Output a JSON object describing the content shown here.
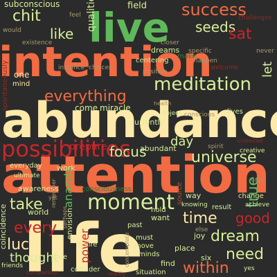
{
  "palette": {
    "background": "#2b2b2b",
    "cream": "#fde9a9",
    "orange": "#f26b43",
    "red": "#c9262a",
    "green": "#5fb85b",
    "pale-green": "#d7ef9a",
    "dim-red": "#8f2a24",
    "dim-green": "#3e7d3c",
    "dim-orange": "#a5553a",
    "dim-cream": "#a89a6f",
    "dim-pale": "#8e9a66"
  },
  "words": [
    {
      "text": "life",
      "color": "cream"
    },
    {
      "text": "abundance",
      "color": "cream"
    },
    {
      "text": "attention",
      "color": "orange"
    },
    {
      "text": "intention",
      "color": "orange"
    },
    {
      "text": "live",
      "color": "green"
    },
    {
      "text": "possibilities",
      "color": "red"
    },
    {
      "text": "moment",
      "color": "pale-green"
    },
    {
      "text": "meditation",
      "color": "pale-green"
    },
    {
      "text": "success",
      "color": "orange"
    },
    {
      "text": "everything",
      "color": "orange"
    },
    {
      "text": "universe",
      "color": "pale-green"
    },
    {
      "text": "focus",
      "color": "pale-green"
    },
    {
      "text": "dream",
      "color": "pale-green"
    },
    {
      "text": "need",
      "color": "pale-green"
    },
    {
      "text": "time",
      "color": "cream"
    },
    {
      "text": "within",
      "color": "orange"
    },
    {
      "text": "take",
      "color": "pale-green"
    },
    {
      "text": "luck",
      "color": "cream"
    },
    {
      "text": "chit",
      "color": "pale-green"
    },
    {
      "text": "like",
      "color": "pale-green"
    },
    {
      "text": "seeds",
      "color": "pale-green"
    },
    {
      "text": "sat",
      "color": "red"
    },
    {
      "text": "qualities",
      "color": "pale-green"
    },
    {
      "text": "every",
      "color": "red"
    },
    {
      "text": "let",
      "color": "pale-green"
    },
    {
      "text": "thought",
      "color": "pale-green"
    },
    {
      "text": "true",
      "color": "green"
    },
    {
      "text": "good",
      "color": "red"
    },
    {
      "text": "day",
      "color": "pale-green"
    },
    {
      "text": "ananda",
      "color": "green"
    },
    {
      "text": "prepare",
      "color": "red"
    },
    {
      "text": "power",
      "color": "red"
    },
    {
      "text": "subconscious",
      "color": "pale-green"
    },
    {
      "text": "field",
      "color": "pale-green"
    },
    {
      "text": "dreams",
      "color": "pale-green"
    },
    {
      "text": "centering",
      "color": "pale-green"
    },
    {
      "text": "challenges",
      "color": "dim-red"
    },
    {
      "text": "would",
      "color": "dim-cream"
    },
    {
      "text": "existence",
      "color": "dim-cream"
    },
    {
      "text": "feel",
      "color": "dim-cream"
    },
    {
      "text": "closer",
      "color": "dim-cream"
    },
    {
      "text": "make",
      "color": "dim-green"
    },
    {
      "text": "specific",
      "color": "dim-cream"
    },
    {
      "text": "never",
      "color": "dim-cream"
    },
    {
      "text": "happen",
      "color": "dim-cream"
    },
    {
      "text": "welcome",
      "color": "dim-red"
    },
    {
      "text": "instance",
      "color": "dim-cream"
    },
    {
      "text": "choices",
      "color": "dim-cream"
    },
    {
      "text": "positive",
      "color": "dim-cream"
    },
    {
      "text": "come",
      "color": "pale-green"
    },
    {
      "text": "miracle",
      "color": "pale-green"
    },
    {
      "text": "one",
      "color": "cream"
    },
    {
      "text": "mind",
      "color": "cream"
    },
    {
      "text": "spontaneously",
      "color": "dim-red"
    },
    {
      "text": "health",
      "color": "dim-cream"
    },
    {
      "text": "conscious",
      "color": "dim-cream"
    },
    {
      "text": "currently",
      "color": "pale-green"
    },
    {
      "text": "abundant",
      "color": "pale-green"
    },
    {
      "text": "everyday",
      "color": "pale-green"
    },
    {
      "text": "ultimate",
      "color": "pale-green"
    },
    {
      "text": "work",
      "color": "pale-green"
    },
    {
      "text": "awareness",
      "color": "pale-green"
    },
    {
      "text": "consciousness",
      "color": "dim-green"
    },
    {
      "text": "spirit",
      "color": "dim-cream"
    },
    {
      "text": "creative",
      "color": "pale-green"
    },
    {
      "text": "unlimited",
      "color": "dim-red"
    },
    {
      "text": "lives",
      "color": "pale-green"
    },
    {
      "text": "object",
      "color": "pale-green"
    },
    {
      "text": "change",
      "color": "pale-green"
    },
    {
      "text": "way",
      "color": "pale-green"
    },
    {
      "text": "knowing",
      "color": "pale-green"
    },
    {
      "text": "result",
      "color": "pale-green"
    },
    {
      "text": "achieve",
      "color": "pale-green"
    },
    {
      "text": "source",
      "color": "dim-orange"
    },
    {
      "text": "days",
      "color": "dim-cream"
    },
    {
      "text": "world",
      "color": "pale-green"
    },
    {
      "text": "coincidence",
      "color": "pale-green"
    },
    {
      "text": "envision",
      "color": "pale-green"
    },
    {
      "text": "want",
      "color": "pale-green"
    },
    {
      "text": "hold",
      "color": "pale-green"
    },
    {
      "text": "joy",
      "color": "pale-green"
    },
    {
      "text": "past",
      "color": "pale-green"
    },
    {
      "text": "must",
      "color": "pale-green"
    },
    {
      "text": "move",
      "color": "pale-green"
    },
    {
      "text": "minds",
      "color": "pale-green"
    },
    {
      "text": "place",
      "color": "pale-green"
    },
    {
      "text": "six",
      "color": "pale-green"
    },
    {
      "text": "desire",
      "color": "pale-green"
    },
    {
      "text": "love",
      "color": "pale-green"
    },
    {
      "text": "find",
      "color": "pale-green"
    },
    {
      "text": "consider",
      "color": "pale-green"
    },
    {
      "text": "situation",
      "color": "pale-green"
    },
    {
      "text": "reality",
      "color": "dim-red"
    },
    {
      "text": "friends",
      "color": "pale-green"
    },
    {
      "text": "comparison",
      "color": "dim-red"
    },
    {
      "text": "perhaps",
      "color": "dim-cream"
    },
    {
      "text": "contemplate",
      "color": "dim-cream"
    },
    {
      "text": "else",
      "color": "dim-cream"
    },
    {
      "text": "remember",
      "color": "dim-cream"
    },
    {
      "text": "yet",
      "color": "dim-cream"
    },
    {
      "text": "yes",
      "color": "pale-green"
    }
  ]
}
